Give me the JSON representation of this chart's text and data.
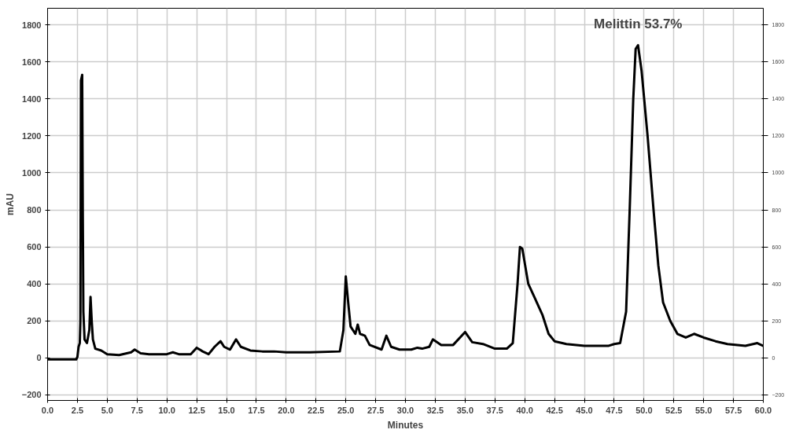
{
  "chart_data": {
    "type": "line",
    "xlabel": "Minutes",
    "ylabel": "mAU",
    "xlim": [
      0,
      60
    ],
    "xticks": [
      {
        "value": 0,
        "label": "0.0"
      },
      {
        "value": 2.5,
        "label": "2.5"
      },
      {
        "value": 5,
        "label": "5.0"
      },
      {
        "value": 7.5,
        "label": "7.5"
      },
      {
        "value": 10,
        "label": "10.0"
      },
      {
        "value": 12.5,
        "label": "12.5"
      },
      {
        "value": 15,
        "label": "15.0"
      },
      {
        "value": 17.5,
        "label": "17.5"
      },
      {
        "value": 20,
        "label": "20.0"
      },
      {
        "value": 22.5,
        "label": "22.5"
      },
      {
        "value": 25,
        "label": "25.0"
      },
      {
        "value": 27.5,
        "label": "27.5"
      },
      {
        "value": 30,
        "label": "30.0"
      },
      {
        "value": 32.5,
        "label": "32.5"
      },
      {
        "value": 35,
        "label": "35.0"
      },
      {
        "value": 37.5,
        "label": "37.5"
      },
      {
        "value": 40,
        "label": "40.0"
      },
      {
        "value": 42.5,
        "label": "42.5"
      },
      {
        "value": 45,
        "label": "45.0"
      },
      {
        "value": 47.5,
        "label": "47.5"
      },
      {
        "value": 50,
        "label": "50.0"
      },
      {
        "value": 52.5,
        "label": "52.5"
      },
      {
        "value": 55,
        "label": "55.0"
      },
      {
        "value": 57.5,
        "label": "57.5"
      },
      {
        "value": 60,
        "label": "60.0"
      }
    ],
    "ylim": [
      -230,
      1890
    ],
    "yticks": [
      -200,
      0,
      200,
      400,
      600,
      800,
      1000,
      1200,
      1400,
      1600,
      1800
    ],
    "y2lim": [
      -230,
      1890
    ],
    "y2ticks": [
      -200,
      0,
      200,
      400,
      600,
      800,
      1000,
      1200,
      1400,
      1600,
      1800
    ],
    "grid": true,
    "marker": "none",
    "line_style": "solid",
    "annotations": [
      {
        "text": "Melittin 53.7%",
        "x": 49.5,
        "y": 1690
      }
    ],
    "series": [
      {
        "color": "#000000",
        "x": [
          0,
          2.4,
          2.5,
          2.6,
          2.7,
          2.75,
          2.8,
          2.9,
          2.95,
          3.0,
          3.1,
          3.3,
          3.5,
          3.6,
          3.7,
          3.8,
          4.0,
          4.5,
          5.0,
          6.0,
          7.0,
          7.3,
          7.8,
          8.5,
          10.0,
          10.5,
          11.0,
          12.0,
          12.5,
          13.0,
          13.5,
          14.0,
          14.5,
          14.8,
          15.3,
          15.8,
          16.2,
          17.0,
          18.0,
          19.0,
          20.0,
          22.0,
          24.5,
          24.8,
          25.0,
          25.2,
          25.4,
          25.8,
          26.0,
          26.2,
          26.6,
          27.0,
          28.0,
          28.4,
          28.8,
          29.5,
          30.5,
          31.0,
          31.4,
          32.0,
          32.3,
          33.0,
          34.0,
          35.0,
          35.6,
          36.5,
          37.5,
          38.5,
          39.0,
          39.4,
          39.6,
          39.8,
          40.3,
          40.8,
          41.5,
          42.0,
          42.5,
          43.5,
          45.0,
          47.0,
          47.5,
          48.0,
          48.5,
          48.8,
          49.1,
          49.3,
          49.5,
          49.8,
          50.3,
          50.8,
          51.2,
          51.6,
          52.2,
          52.8,
          53.5,
          54.2,
          55.0,
          56.0,
          57.0,
          58.5,
          59.5,
          60.0
        ],
        "values": [
          -8,
          -8,
          5,
          60,
          80,
          200,
          1500,
          1530,
          800,
          250,
          100,
          80,
          150,
          330,
          200,
          100,
          50,
          40,
          20,
          15,
          30,
          45,
          25,
          20,
          20,
          30,
          20,
          20,
          55,
          35,
          20,
          60,
          90,
          60,
          45,
          100,
          60,
          40,
          35,
          35,
          30,
          30,
          35,
          150,
          440,
          300,
          170,
          130,
          180,
          130,
          120,
          70,
          45,
          120,
          60,
          45,
          45,
          55,
          50,
          60,
          100,
          70,
          70,
          140,
          85,
          75,
          50,
          50,
          80,
          400,
          600,
          590,
          400,
          330,
          230,
          130,
          90,
          75,
          65,
          65,
          75,
          80,
          250,
          800,
          1400,
          1670,
          1690,
          1550,
          1200,
          800,
          500,
          300,
          200,
          130,
          110,
          130,
          110,
          90,
          75,
          65,
          80,
          65
        ]
      }
    ]
  }
}
